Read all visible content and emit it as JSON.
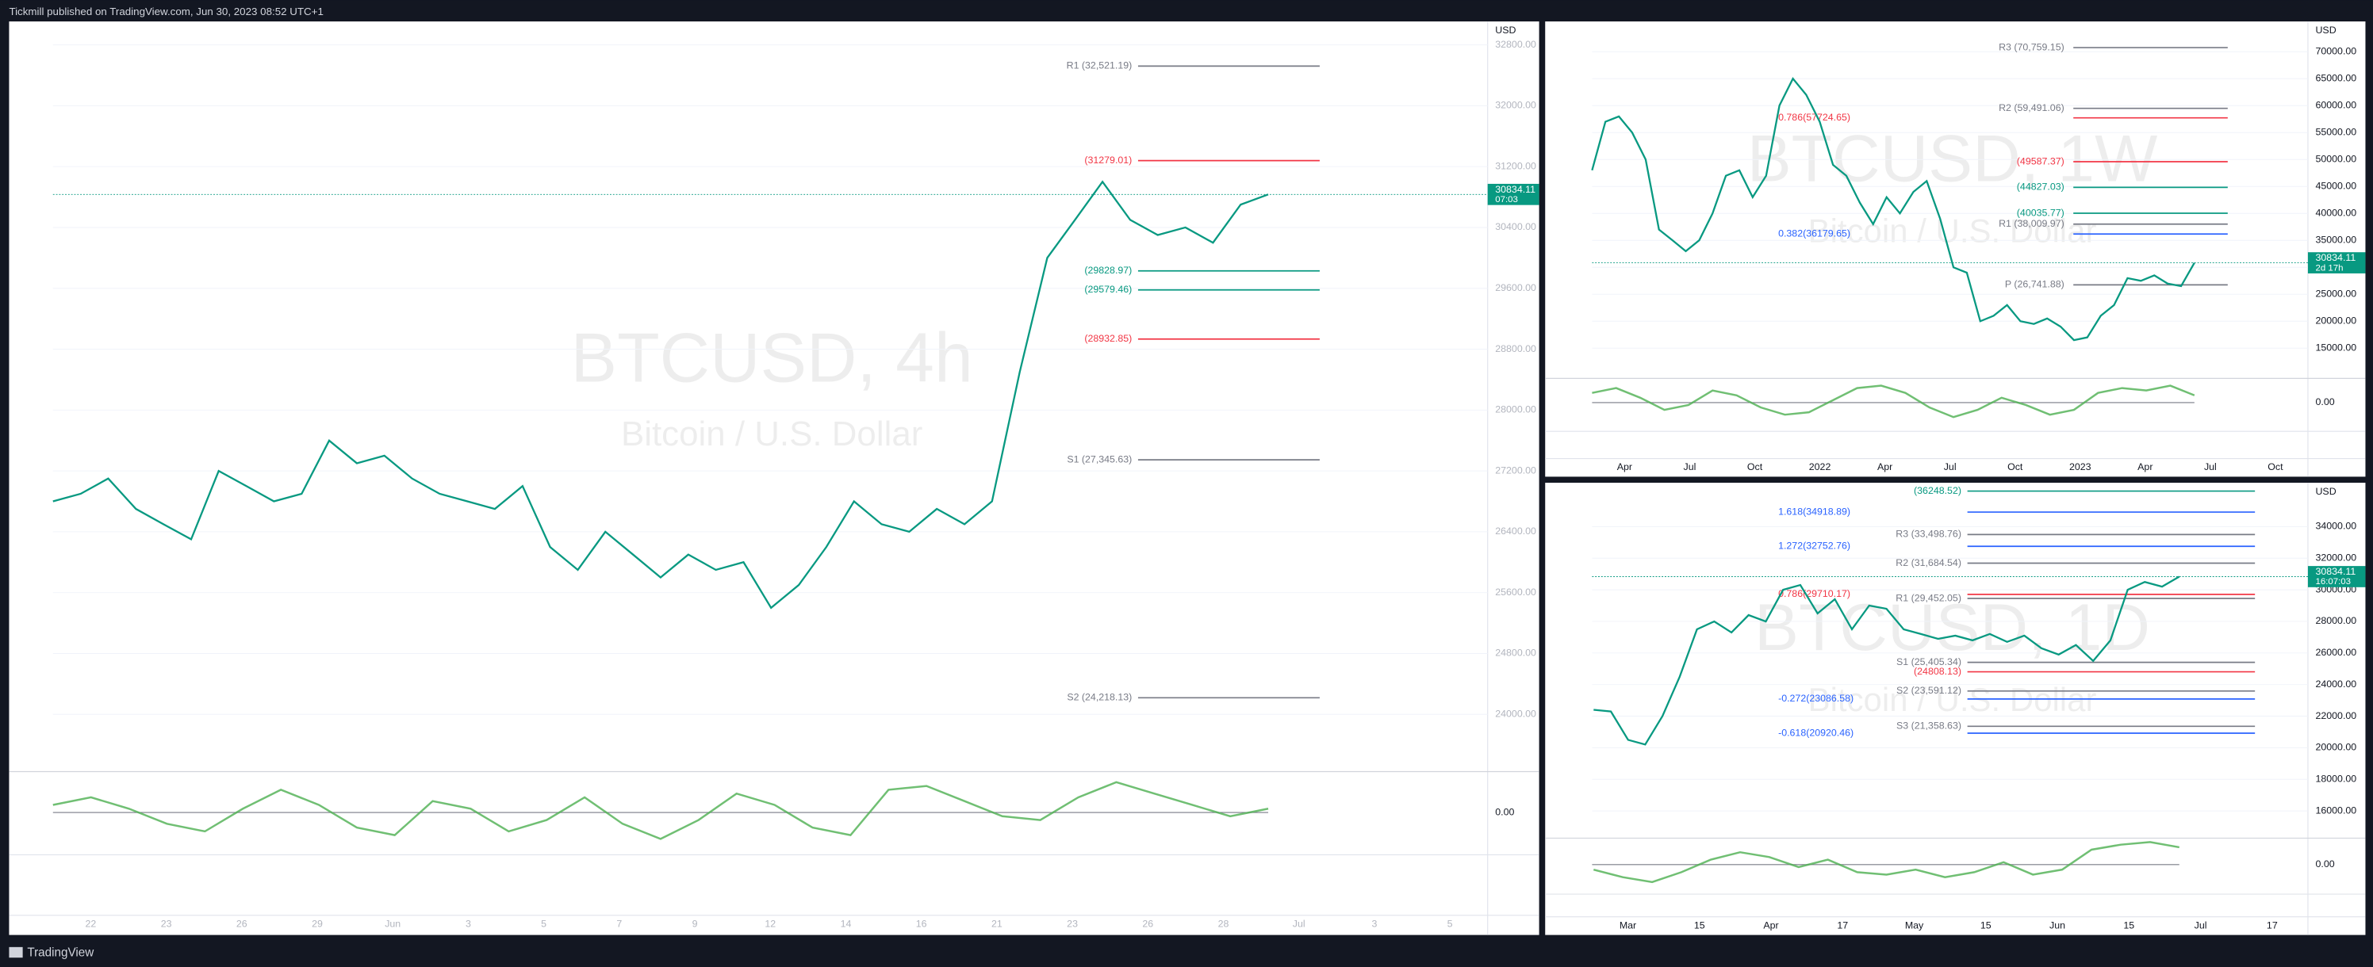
{
  "header": {
    "text": "Tickmill published on TradingView.com, Jun 30, 2023 08:52 UTC+1"
  },
  "footer": {
    "brand": "TradingView"
  },
  "panels": [
    {
      "symbol": "BTCUSD, 4h",
      "description": "Bitcoin / U.S. Dollar",
      "currency": "USD",
      "ylim": [
        23287,
        33088
      ],
      "yticks": [
        {
          "value": 24000,
          "label": "24000.00"
        },
        {
          "value": 24800,
          "label": "24800.00"
        },
        {
          "value": 25600,
          "label": "25600.00"
        },
        {
          "value": 26400,
          "label": "26400.00"
        },
        {
          "value": 27200,
          "label": "27200.00"
        },
        {
          "value": 28000,
          "label": "28000.00"
        },
        {
          "value": 28800,
          "label": "28800.00"
        },
        {
          "value": 29600,
          "label": "29600.00"
        },
        {
          "value": 30400,
          "label": "30400.00"
        },
        {
          "value": 31200,
          "label": "31200.00"
        },
        {
          "value": 32000,
          "label": "32000.00"
        },
        {
          "value": 32800,
          "label": "32800.00"
        }
      ],
      "xticks": [
        "22",
        "23",
        "26",
        "29",
        "Jun",
        "3",
        "5",
        "7",
        "9",
        "12",
        "14",
        "16",
        "21",
        "23",
        "26",
        "28",
        "Jul",
        "3",
        "5"
      ],
      "price": {
        "color": "#089981",
        "values": [
          26800,
          26900,
          27100,
          26700,
          26500,
          26300,
          27200,
          27000,
          26800,
          26900,
          27600,
          27300,
          27400,
          27100,
          26900,
          26800,
          26700,
          27000,
          26200,
          25900,
          26400,
          26100,
          25800,
          26100,
          25900,
          26000,
          25400,
          25700,
          26200,
          26800,
          26500,
          26400,
          26700,
          26500,
          26800,
          28500,
          30000,
          30500,
          31000,
          30500,
          30300,
          30400,
          30200,
          30700,
          30834.11
        ]
      },
      "last": {
        "value": 30834.11,
        "label": "30834.11",
        "countdown": "07:03"
      },
      "levels": [
        {
          "value": 32521.19,
          "label": "R1 (32,521.19)",
          "color": "#787b86"
        },
        {
          "value": 31279.01,
          "label": "(31279.01)",
          "color": "#f23645"
        },
        {
          "value": 29828.97,
          "label": "(29828.97)",
          "color": "#089981"
        },
        {
          "value": 29579.46,
          "label": "(29579.46)",
          "color": "#089981"
        },
        {
          "value": 28932.85,
          "label": "(28932.85)",
          "color": "#f23645"
        },
        {
          "value": 27345.63,
          "label": "S1 (27,345.63)",
          "color": "#787b86"
        },
        {
          "value": 24218.13,
          "label": "S2 (24,218.13)",
          "color": "#787b86"
        }
      ],
      "osc": {
        "ylim": [
          -1,
          1
        ],
        "ticks": [
          {
            "value": 0,
            "label": "0.00"
          }
        ],
        "values": [
          0.2,
          0.4,
          0.1,
          -0.3,
          -0.5,
          0.1,
          0.6,
          0.2,
          -0.4,
          -0.6,
          0.3,
          0.1,
          -0.5,
          -0.2,
          0.4,
          -0.3,
          -0.7,
          -0.2,
          0.5,
          0.2,
          -0.4,
          -0.6,
          0.6,
          0.7,
          0.3,
          -0.1,
          -0.2,
          0.4,
          0.8,
          0.5,
          0.2,
          -0.1,
          0.1
        ]
      }
    },
    {
      "symbol": "BTCUSD, 1W",
      "description": "Bitcoin / U.S. Dollar",
      "currency": "USD",
      "ylim": [
        9955,
        75331
      ],
      "yticks": [
        {
          "value": 15000,
          "label": "15000.00"
        },
        {
          "value": 20000,
          "label": "20000.00"
        },
        {
          "value": 25000,
          "label": "25000.00"
        },
        {
          "value": 30000,
          "label": "30000.00"
        },
        {
          "value": 35000,
          "label": "35000.00"
        },
        {
          "value": 40000,
          "label": "40000.00"
        },
        {
          "value": 45000,
          "label": "45000.00"
        },
        {
          "value": 50000,
          "label": "50000.00"
        },
        {
          "value": 55000,
          "label": "55000.00"
        },
        {
          "value": 60000,
          "label": "60000.00"
        },
        {
          "value": 65000,
          "label": "65000.00"
        },
        {
          "value": 70000,
          "label": "70000.00"
        }
      ],
      "xticks": [
        "Apr",
        "Jul",
        "Oct",
        "2022",
        "Apr",
        "Jul",
        "Oct",
        "2023",
        "Apr",
        "Jul",
        "Oct"
      ],
      "price": {
        "color": "#089981",
        "values": [
          48000,
          57000,
          58000,
          55000,
          50000,
          37000,
          35000,
          33000,
          35000,
          40000,
          47000,
          48000,
          43000,
          47000,
          60000,
          65000,
          62000,
          57000,
          49000,
          47000,
          42000,
          38000,
          43000,
          40000,
          44000,
          46000,
          39000,
          30000,
          29000,
          20000,
          21000,
          23000,
          20000,
          19500,
          20500,
          19000,
          16500,
          17000,
          21000,
          23000,
          28000,
          27500,
          28500,
          27000,
          26500,
          30834.11
        ]
      },
      "last": {
        "value": 30834.11,
        "label": "30834.11",
        "countdown": "2d 17h"
      },
      "levels": [
        {
          "value": 70759.15,
          "label": "R3 (70,759.15)",
          "color": "#787b86"
        },
        {
          "value": 59491.06,
          "label": "R2 (59,491.06)",
          "color": "#787b86"
        },
        {
          "value": 57724.65,
          "label": "0.786(57724.65)",
          "color": "#f23645"
        },
        {
          "value": 49587.37,
          "label": "(49587.37)",
          "color": "#f23645"
        },
        {
          "value": 44827.03,
          "label": "(44827.03)",
          "color": "#089981"
        },
        {
          "value": 40035.77,
          "label": "(40035.77)",
          "color": "#089981"
        },
        {
          "value": 38009.97,
          "label": "R1 (38,009.97)",
          "color": "#787b86"
        },
        {
          "value": 36179.65,
          "label": "0.382(36179.65)",
          "color": "#2962ff"
        },
        {
          "value": 26741.88,
          "label": "P (26,741.88)",
          "color": "#787b86"
        }
      ],
      "osc": {
        "ylim": [
          -1,
          1
        ],
        "ticks": [
          {
            "value": 0,
            "label": "0.00"
          }
        ],
        "values": [
          0.4,
          0.6,
          0.2,
          -0.3,
          -0.1,
          0.5,
          0.3,
          -0.2,
          -0.5,
          -0.4,
          0.1,
          0.6,
          0.7,
          0.4,
          -0.2,
          -0.6,
          -0.3,
          0.2,
          -0.1,
          -0.5,
          -0.3,
          0.4,
          0.6,
          0.5,
          0.7,
          0.3
        ]
      }
    },
    {
      "symbol": "BTCUSD, 1D",
      "description": "Bitcoin / U.S. Dollar",
      "currency": "USD",
      "ylim": [
        14467,
        36681
      ],
      "yticks": [
        {
          "value": 16000,
          "label": "16000.00"
        },
        {
          "value": 18000,
          "label": "18000.00"
        },
        {
          "value": 20000,
          "label": "20000.00"
        },
        {
          "value": 22000,
          "label": "22000.00"
        },
        {
          "value": 24000,
          "label": "24000.00"
        },
        {
          "value": 26000,
          "label": "26000.00"
        },
        {
          "value": 28000,
          "label": "28000.00"
        },
        {
          "value": 30000,
          "label": "30000.00"
        },
        {
          "value": 32000,
          "label": "32000.00"
        },
        {
          "value": 34000,
          "label": "34000.00"
        }
      ],
      "xticks": [
        "Mar",
        "15",
        "Apr",
        "17",
        "May",
        "15",
        "Jun",
        "15",
        "Jul",
        "17"
      ],
      "price": {
        "color": "#089981",
        "values": [
          22400,
          22300,
          20500,
          20200,
          22000,
          24500,
          27500,
          28000,
          27300,
          28400,
          28000,
          30000,
          30300,
          28500,
          29400,
          27500,
          29000,
          28800,
          27500,
          27200,
          26900,
          27100,
          26800,
          27200,
          26700,
          27100,
          26300,
          25900,
          26500,
          25500,
          26800,
          30000,
          30500,
          30200,
          30834.11
        ]
      },
      "last": {
        "value": 30834.11,
        "label": "30834.11",
        "countdown": "16:07:03"
      },
      "levels": [
        {
          "value": 36248.52,
          "label": "(36248.52)",
          "color": "#089981"
        },
        {
          "value": 34918.89,
          "label": "1.618(34918.89)",
          "color": "#2962ff"
        },
        {
          "value": 33498.76,
          "label": "R3 (33,498.76)",
          "color": "#787b86"
        },
        {
          "value": 32752.76,
          "label": "1.272(32752.76)",
          "color": "#2962ff"
        },
        {
          "value": 31684.54,
          "label": "R2 (31,684.54)",
          "color": "#787b86"
        },
        {
          "value": 29710.17,
          "label": "0.786(29710.17)",
          "color": "#f23645"
        },
        {
          "value": 29452.05,
          "label": "R1 (29,452.05)",
          "color": "#787b86"
        },
        {
          "value": 25405.34,
          "label": "S1 (25,405.34)",
          "color": "#787b86"
        },
        {
          "value": 24808.13,
          "label": "(24808.13)",
          "color": "#f23645"
        },
        {
          "value": 23591.12,
          "label": "S2 (23,591.12)",
          "color": "#787b86"
        },
        {
          "value": 23086.58,
          "label": "-0.272(23086.58)",
          "color": "#2962ff"
        },
        {
          "value": 21358.63,
          "label": "S3 (21,358.63)",
          "color": "#787b86"
        },
        {
          "value": 20920.46,
          "label": "-0.618(20920.46)",
          "color": "#2962ff"
        }
      ],
      "osc": {
        "ylim": [
          -1,
          1
        ],
        "ticks": [
          {
            "value": 0,
            "label": "0.00"
          }
        ],
        "values": [
          -0.2,
          -0.5,
          -0.7,
          -0.3,
          0.2,
          0.5,
          0.3,
          -0.1,
          0.2,
          -0.3,
          -0.4,
          -0.2,
          -0.5,
          -0.3,
          0.1,
          -0.4,
          -0.2,
          0.6,
          0.8,
          0.9,
          0.7
        ]
      }
    }
  ]
}
